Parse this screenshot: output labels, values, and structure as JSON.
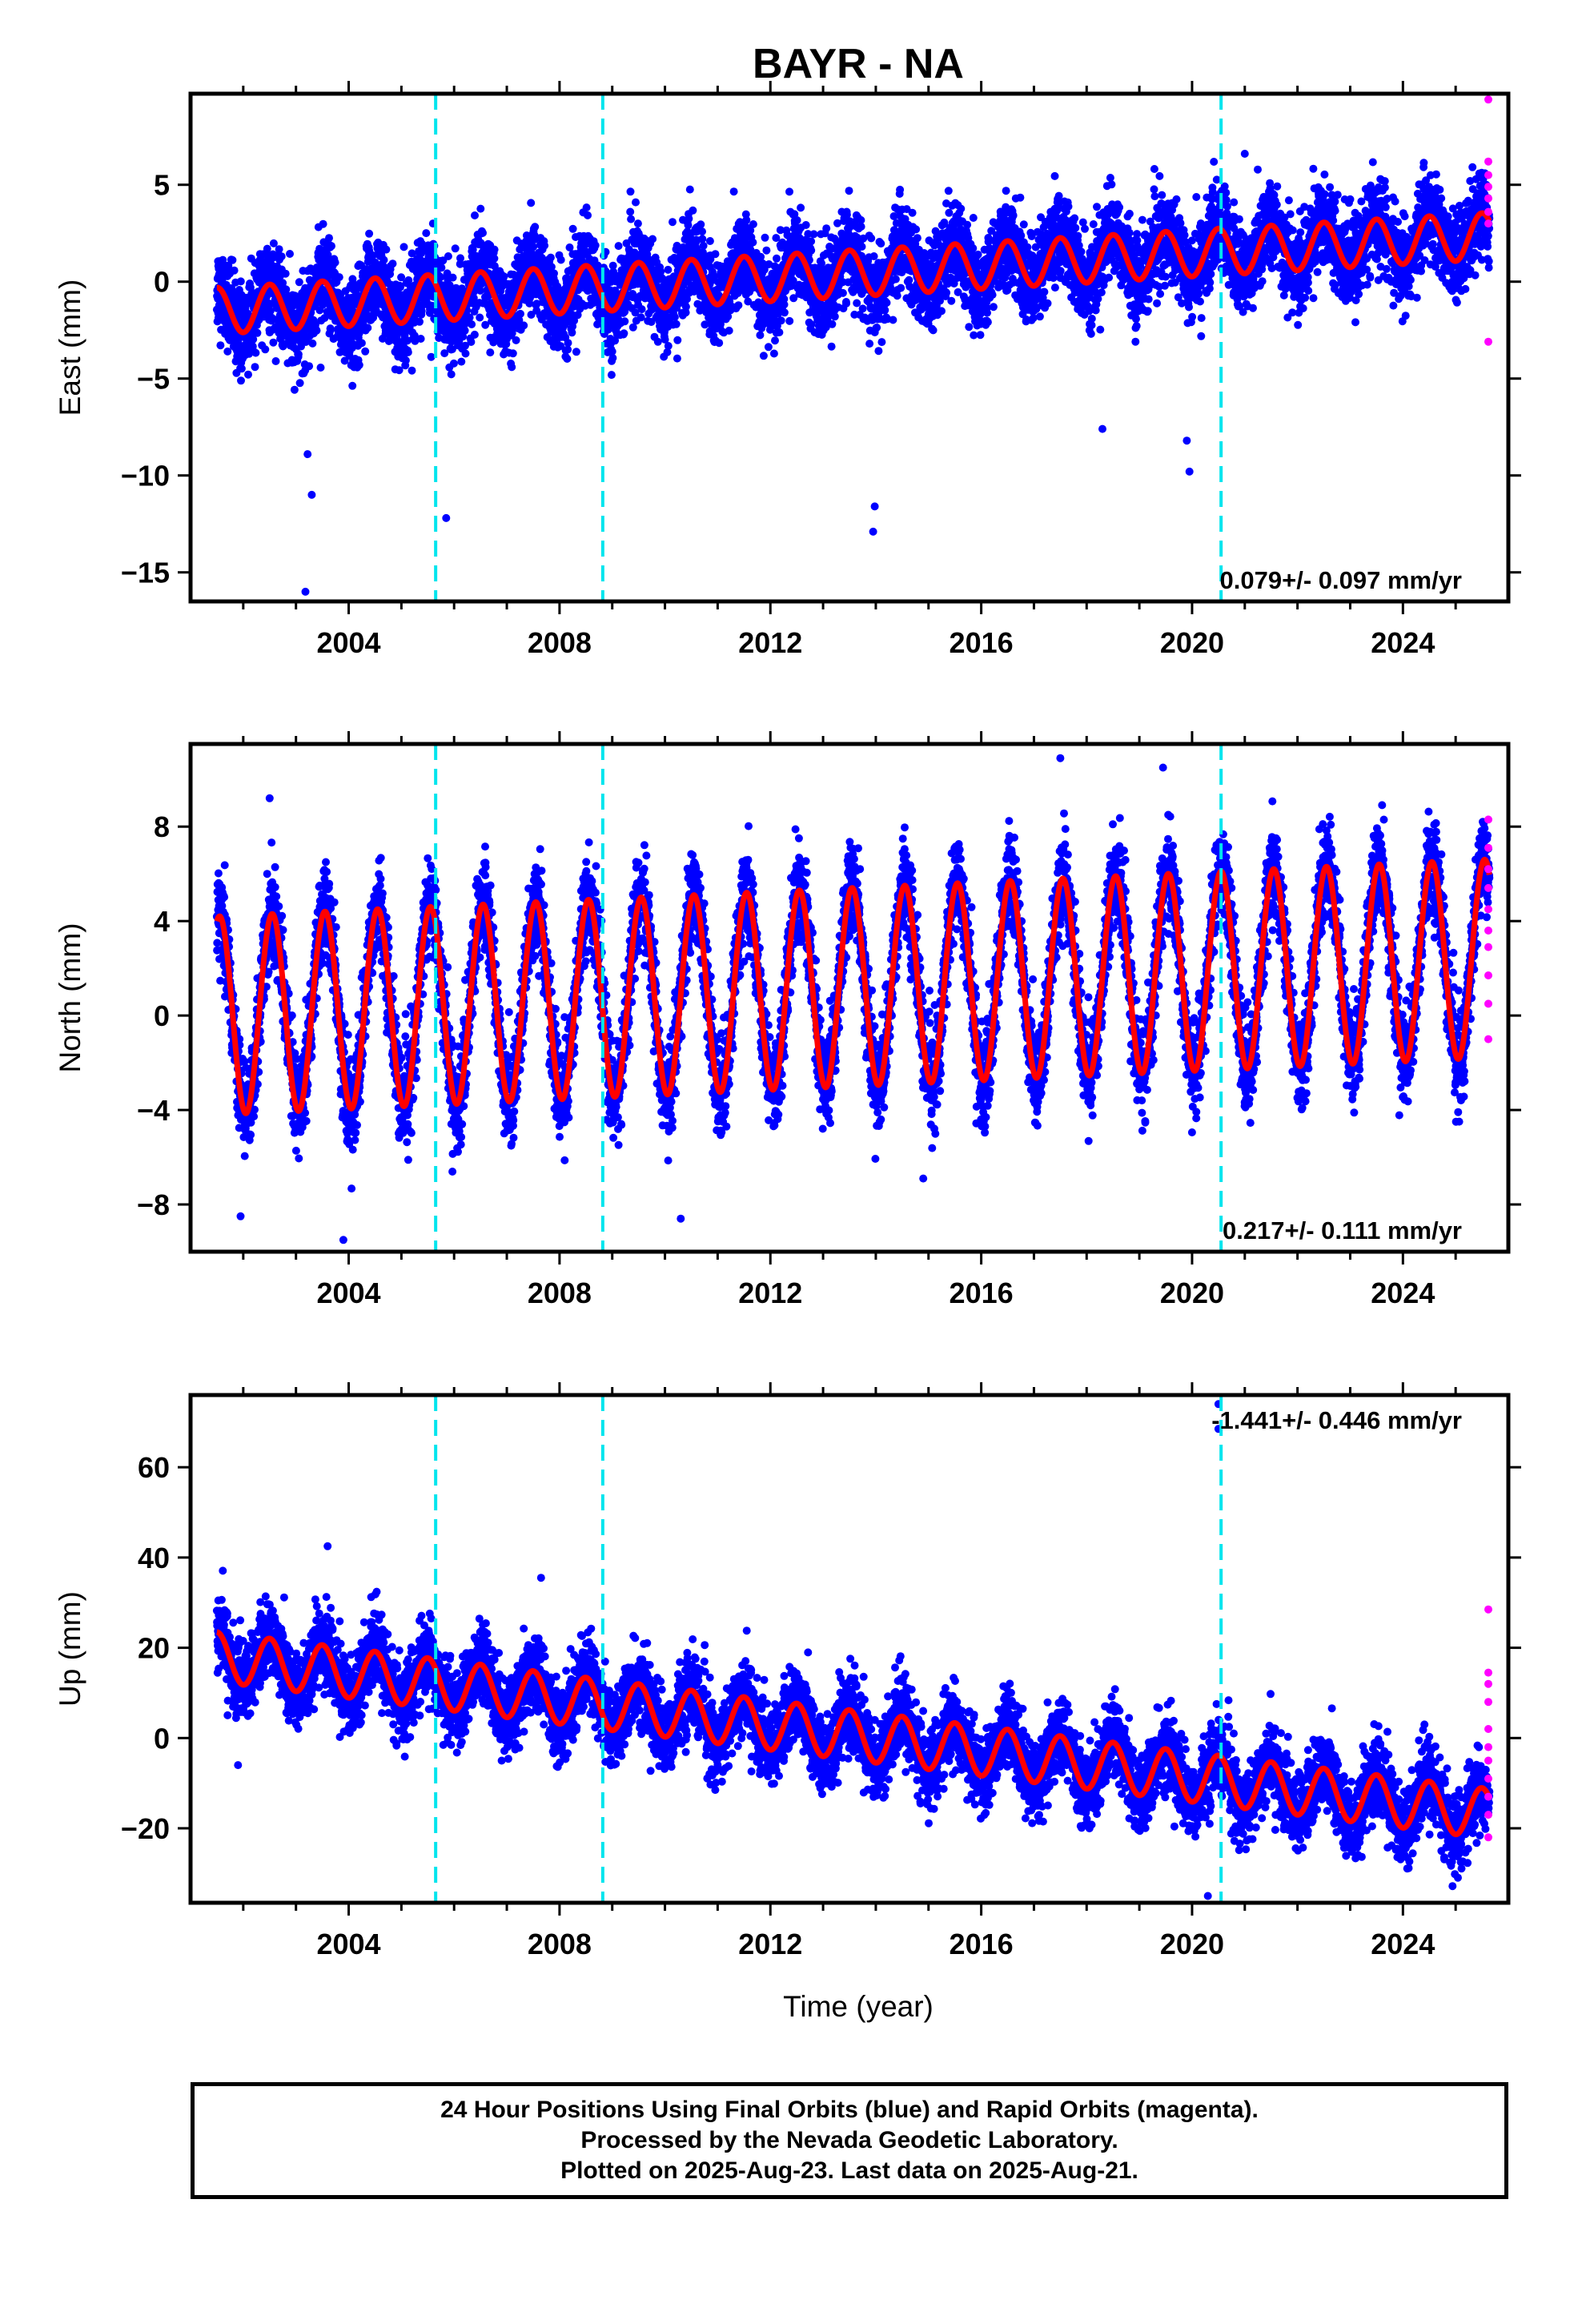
{
  "title": "BAYR - NA",
  "xlabel": "Time (year)",
  "colors": {
    "final_orbits": "#0000ff",
    "rapid_orbits": "#ff00ff",
    "model_fit": "#ff0000",
    "equipment_change_lines": "#00e5ee",
    "frame": "#000000"
  },
  "footer": {
    "line1": "24 Hour Positions Using Final Orbits (blue) and Rapid Orbits (magenta).",
    "line2": "Processed by the Nevada Geodetic Laboratory.",
    "line3": "Plotted on 2025-Aug-23. Last data on 2025-Aug-21."
  },
  "chart_data": [
    {
      "type": "scatter",
      "component": "East",
      "ylabel": "East (mm)",
      "xlim": [
        2001.0,
        2026.0
      ],
      "ylim": [
        -16.5,
        9.7
      ],
      "x_ticks": [
        "2004",
        "2008",
        "2012",
        "2016",
        "2020",
        "2024"
      ],
      "y_ticks": [
        "5",
        "0",
        "−5",
        "−10",
        "−15"
      ],
      "y_tick_values": [
        5,
        0,
        -5,
        -10,
        -15
      ],
      "rate_label": "0.079+/- 0.097 mm/yr",
      "rate_label_position": "bottom-right",
      "equipment_changes": [
        2005.65,
        2008.82,
        2020.55
      ],
      "data_start": 2001.5,
      "data_end": 2025.64,
      "model": {
        "offset": -1.5,
        "trend": 0.16,
        "annual_amplitude": 1.2,
        "annual_phase_peak": 0.5,
        "scatter_sd": 1.1
      },
      "outliers": [
        [
          2003.18,
          -16.0
        ],
        [
          2003.22,
          -8.9
        ],
        [
          2003.3,
          -11.0
        ],
        [
          2005.85,
          -12.2
        ],
        [
          2013.95,
          -12.9
        ],
        [
          2013.98,
          -11.6
        ],
        [
          2019.9,
          -8.2
        ],
        [
          2019.95,
          -9.8
        ],
        [
          2021.0,
          6.6
        ],
        [
          2018.3,
          -7.6
        ]
      ],
      "rapid_orbits": [
        [
          2025.62,
          9.4
        ],
        [
          2025.62,
          6.2
        ],
        [
          2025.62,
          5.5
        ],
        [
          2025.62,
          4.9
        ],
        [
          2025.62,
          4.3
        ],
        [
          2025.62,
          3.6
        ],
        [
          2025.62,
          3.0
        ],
        [
          2025.62,
          -3.1
        ]
      ]
    },
    {
      "type": "scatter",
      "component": "North",
      "ylabel": "North (mm)",
      "xlim": [
        2001.0,
        2026.0
      ],
      "ylim": [
        -10.0,
        11.5
      ],
      "x_ticks": [
        "2004",
        "2008",
        "2012",
        "2016",
        "2020",
        "2024"
      ],
      "y_ticks": [
        "8",
        "4",
        "0",
        "−4",
        "−8"
      ],
      "y_tick_values": [
        8,
        4,
        0,
        -4,
        -8
      ],
      "rate_label": "0.217+/- 0.111 mm/yr",
      "rate_label_position": "bottom-right",
      "equipment_changes": [
        2005.65,
        2008.82,
        2020.55
      ],
      "data_start": 2001.5,
      "data_end": 2025.64,
      "model": {
        "offset": 0.0,
        "trend": 0.1,
        "annual_amplitude": 4.2,
        "annual_phase_peak": 0.55,
        "scatter_sd": 1.0
      },
      "outliers": [
        [
          2001.95,
          -8.5
        ],
        [
          2003.9,
          -9.5
        ],
        [
          2010.3,
          -8.6
        ],
        [
          2014.9,
          -6.9
        ],
        [
          2017.5,
          10.9
        ],
        [
          2019.45,
          10.5
        ],
        [
          2002.5,
          9.2
        ]
      ],
      "rapid_orbits": [
        [
          2025.62,
          8.3
        ],
        [
          2025.62,
          7.1
        ],
        [
          2025.62,
          6.2
        ],
        [
          2025.62,
          5.4
        ],
        [
          2025.62,
          4.5
        ],
        [
          2025.62,
          3.6
        ],
        [
          2025.62,
          2.9
        ],
        [
          2025.62,
          1.7
        ],
        [
          2025.62,
          0.5
        ],
        [
          2025.62,
          -1.0
        ]
      ]
    },
    {
      "type": "scatter",
      "component": "Up",
      "ylabel": "Up (mm)",
      "xlim": [
        2001.0,
        2026.0
      ],
      "ylim": [
        -36.5,
        76.0
      ],
      "x_ticks": [
        "2004",
        "2008",
        "2012",
        "2016",
        "2020",
        "2024"
      ],
      "y_ticks": [
        "60",
        "40",
        "20",
        "0",
        "−20"
      ],
      "y_tick_values": [
        60,
        40,
        20,
        0,
        -20
      ],
      "rate_label": "-1.441+/- 0.446 mm/yr",
      "rate_label_position": "top-right",
      "equipment_changes": [
        2005.65,
        2008.82,
        2020.55
      ],
      "data_start": 2001.5,
      "data_end": 2025.64,
      "model": {
        "offset": 18.0,
        "trend": -1.44,
        "annual_amplitude": 5.5,
        "annual_phase_peak": 0.5,
        "scatter_sd": 4.2
      },
      "outliers": [
        [
          2003.6,
          42.5
        ],
        [
          2007.65,
          35.5
        ],
        [
          2020.5,
          74.0
        ],
        [
          2020.5,
          68.5
        ],
        [
          2001.9,
          -6.0
        ],
        [
          2020.3,
          -35.0
        ]
      ],
      "rapid_orbits": [
        [
          2025.62,
          28.5
        ],
        [
          2025.62,
          14.5
        ],
        [
          2025.62,
          12.0
        ],
        [
          2025.62,
          8.0
        ],
        [
          2025.62,
          2.0
        ],
        [
          2025.62,
          -2.0
        ],
        [
          2025.62,
          -5.0
        ],
        [
          2025.62,
          -9.0
        ],
        [
          2025.62,
          -13.0
        ],
        [
          2025.62,
          -17.0
        ],
        [
          2025.62,
          -22.0
        ]
      ]
    }
  ]
}
